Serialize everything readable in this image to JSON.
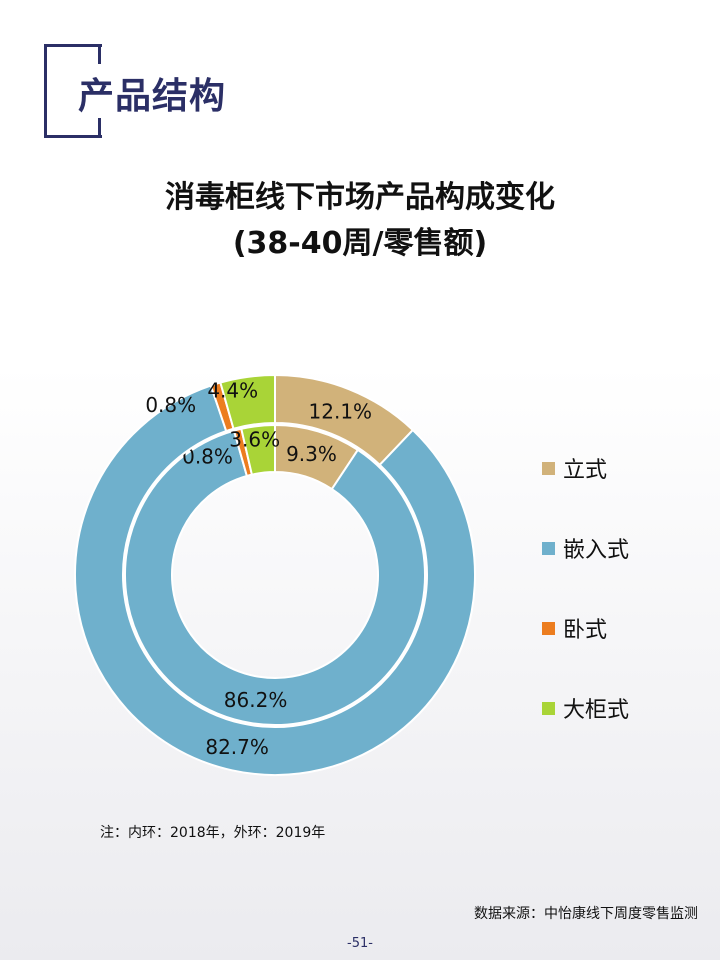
{
  "section_title": "产品结构",
  "page_number": "-51-",
  "note": "注：内环：2018年，外环：2019年",
  "source": "数据来源：中怡康线下周度零售监测",
  "chart_data": {
    "type": "donut",
    "title_line1": "消毒柜线下市场产品构成变化",
    "title_line2": "(38-40周/零售额)",
    "categories": [
      "立式",
      "嵌入式",
      "卧式",
      "大柜式"
    ],
    "colors": [
      "#d1b27a",
      "#6fb0cc",
      "#ec7d1f",
      "#a9d437"
    ],
    "series": [
      {
        "ring": "inner",
        "values": [
          9.3,
          86.2,
          0.8,
          3.6
        ],
        "labels": [
          "9.3%",
          "86.2%",
          "0.8%",
          "3.6%"
        ]
      },
      {
        "ring": "outer",
        "values": [
          12.1,
          82.7,
          0.8,
          4.4
        ],
        "labels": [
          "12.1%",
          "82.7%",
          "0.8%",
          "4.4%"
        ]
      }
    ],
    "legend": "right"
  }
}
